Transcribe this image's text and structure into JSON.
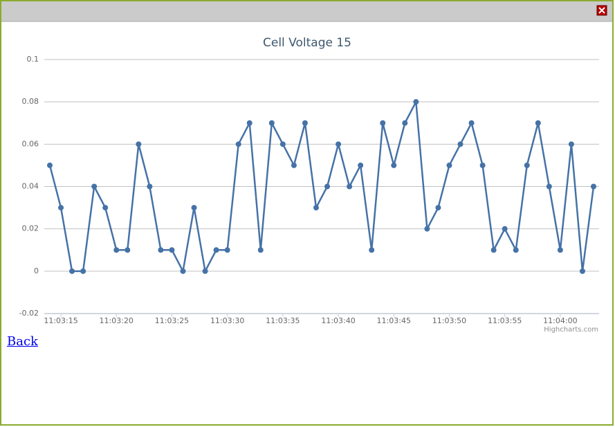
{
  "chart_data": {
    "type": "line",
    "title": "Cell Voltage 15",
    "x": [
      "11:03:14",
      "11:03:15",
      "11:03:16",
      "11:03:17",
      "11:03:18",
      "11:03:19",
      "11:03:20",
      "11:03:21",
      "11:03:22",
      "11:03:23",
      "11:03:24",
      "11:03:25",
      "11:03:26",
      "11:03:27",
      "11:03:28",
      "11:03:29",
      "11:03:30",
      "11:03:31",
      "11:03:32",
      "11:03:33",
      "11:03:34",
      "11:03:35",
      "11:03:36",
      "11:03:37",
      "11:03:38",
      "11:03:39",
      "11:03:40",
      "11:03:41",
      "11:03:42",
      "11:03:43",
      "11:03:44",
      "11:03:45",
      "11:03:46",
      "11:03:47",
      "11:03:48",
      "11:03:49",
      "11:03:50",
      "11:03:51",
      "11:03:52",
      "11:03:53",
      "11:03:54",
      "11:03:55",
      "11:03:56",
      "11:03:57",
      "11:03:58",
      "11:03:59",
      "11:04:00",
      "11:04:01",
      "11:04:02",
      "11:04:03"
    ],
    "values": [
      0.05,
      0.03,
      0,
      0,
      0.04,
      0.03,
      0.01,
      0.01,
      0.06,
      0.04,
      0.01,
      0.01,
      0,
      0.03,
      0,
      0.01,
      0.01,
      0.06,
      0.07,
      0.01,
      0.07,
      0.06,
      0.05,
      0.07,
      0.03,
      0.04,
      0.06,
      0.04,
      0.05,
      0.01,
      0.07,
      0.05,
      0.07,
      0.08,
      0.02,
      0.03,
      0.05,
      0.06,
      0.07,
      0.05,
      0.01,
      0.02,
      0.01,
      0.05,
      0.07,
      0.04,
      0.01,
      0.06,
      0,
      0.04
    ],
    "color": "#4572a7",
    "xticks": [
      "11:03:15",
      "11:03:20",
      "11:03:25",
      "11:03:30",
      "11:03:35",
      "11:03:40",
      "11:03:45",
      "11:03:50",
      "11:03:55",
      "11:04:00"
    ],
    "ylim": [
      -0.02,
      0.1
    ],
    "yticks": [
      -0.02,
      0,
      0.02,
      0.04,
      0.06,
      0.08,
      0.1
    ],
    "grid": true
  },
  "credits": "Highcharts.com",
  "link": "Back"
}
